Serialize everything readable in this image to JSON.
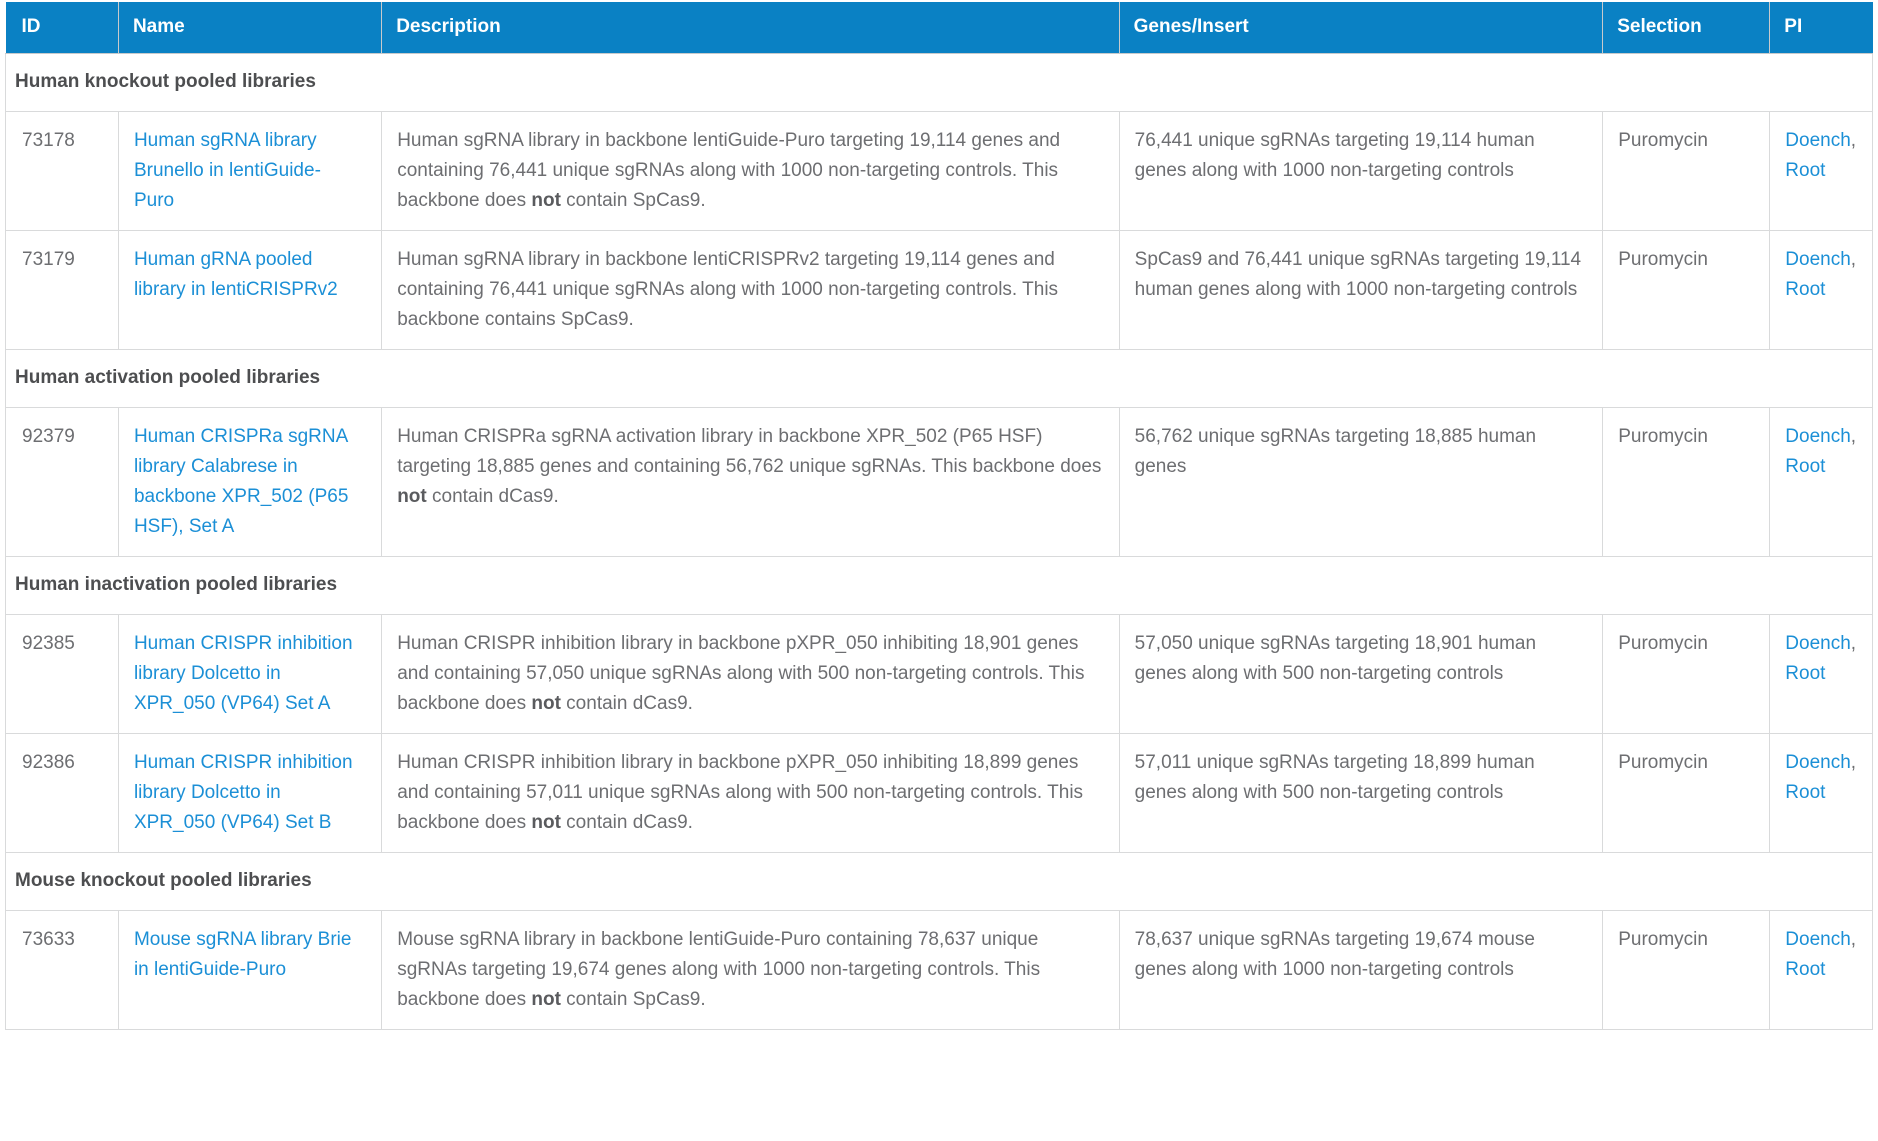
{
  "colors": {
    "header_background": "#0a81c4",
    "link": "#1b8fd6",
    "body_text": "#6d6e71",
    "section_text": "#4d4e50",
    "row_border": "#d9dadb"
  },
  "table": {
    "columns": [
      {
        "key": "id",
        "label": "ID"
      },
      {
        "key": "name",
        "label": "Name"
      },
      {
        "key": "description",
        "label": "Description"
      },
      {
        "key": "genes_insert",
        "label": "Genes/Insert"
      },
      {
        "key": "selection",
        "label": "Selection"
      },
      {
        "key": "pi",
        "label": "PI"
      }
    ],
    "pi_separator": ", ",
    "sections": [
      {
        "title": "Human knockout pooled libraries",
        "rows": [
          {
            "id": "73178",
            "name": "Human sgRNA library Brunello in lentiGuide-Puro",
            "description": [
              {
                "t": "Human sgRNA library in backbone lentiGuide-Puro targeting 19,114 genes and containing 76,441 unique sgRNAs along with 1000 non-targeting controls. This backbone does ",
                "b": false
              },
              {
                "t": "not",
                "b": true
              },
              {
                "t": " contain SpCas9.",
                "b": false
              }
            ],
            "genes_insert": "76,441 unique sgRNAs targeting 19,114 human genes along with 1000 non-targeting controls",
            "selection": "Puromycin",
            "pi": [
              "Doench",
              "Root"
            ]
          },
          {
            "id": "73179",
            "name": "Human gRNA pooled library in lentiCRISPRv2",
            "description": [
              {
                "t": "Human sgRNA library in backbone lentiCRISPRv2 targeting 19,114 genes and containing 76,441 unique sgRNAs along with 1000 non-targeting controls. This backbone contains SpCas9.",
                "b": false
              }
            ],
            "genes_insert": "SpCas9 and 76,441 unique sgRNAs targeting 19,114 human genes along with 1000 non-targeting controls",
            "selection": "Puromycin",
            "pi": [
              "Doench",
              "Root"
            ]
          }
        ]
      },
      {
        "title": "Human activation pooled libraries",
        "rows": [
          {
            "id": "92379",
            "name": "Human CRISPRa sgRNA library Calabrese in backbone XPR_502 (P65 HSF), Set A",
            "description": [
              {
                "t": "Human CRISPRa sgRNA activation library in backbone XPR_502 (P65 HSF) targeting 18,885 genes and containing 56,762 unique sgRNAs. This backbone does ",
                "b": false
              },
              {
                "t": "not",
                "b": true
              },
              {
                "t": " contain dCas9.",
                "b": false
              }
            ],
            "genes_insert": "56,762 unique sgRNAs targeting 18,885 human genes",
            "selection": "Puromycin",
            "pi": [
              "Doench",
              "Root"
            ]
          }
        ]
      },
      {
        "title": "Human inactivation pooled libraries",
        "rows": [
          {
            "id": "92385",
            "name": "Human CRISPR inhibition library Dolcetto in XPR_050 (VP64) Set A",
            "description": [
              {
                "t": "Human CRISPR inhibition library in backbone pXPR_050 inhibiting 18,901 genes and containing 57,050 unique sgRNAs along with 500 non-targeting controls. This backbone does ",
                "b": false
              },
              {
                "t": "not",
                "b": true
              },
              {
                "t": " contain dCas9.",
                "b": false
              }
            ],
            "genes_insert": "57,050 unique sgRNAs targeting 18,901 human genes along with 500 non-targeting controls",
            "selection": "Puromycin",
            "pi": [
              "Doench",
              "Root"
            ]
          },
          {
            "id": "92386",
            "name": "Human CRISPR inhibition library Dolcetto in XPR_050 (VP64) Set B",
            "description": [
              {
                "t": "Human CRISPR inhibition library in backbone pXPR_050 inhibiting 18,899 genes and containing 57,011 unique sgRNAs along with 500 non-targeting controls. This backbone does ",
                "b": false
              },
              {
                "t": "not",
                "b": true
              },
              {
                "t": " contain dCas9.",
                "b": false
              }
            ],
            "genes_insert": "57,011 unique sgRNAs targeting 18,899 human genes along with 500 non-targeting controls",
            "selection": "Puromycin",
            "pi": [
              "Doench",
              "Root"
            ]
          }
        ]
      },
      {
        "title": "Mouse knockout pooled libraries",
        "rows": [
          {
            "id": "73633",
            "name": "Mouse sgRNA library Brie in lentiGuide-Puro",
            "description": [
              {
                "t": "Mouse sgRNA library in backbone lentiGuide-Puro containing 78,637 unique sgRNAs targeting 19,674 genes along with 1000 non-targeting controls. This backbone does ",
                "b": false
              },
              {
                "t": "not",
                "b": true
              },
              {
                "t": " contain SpCas9.",
                "b": false
              }
            ],
            "genes_insert": "78,637 unique sgRNAs targeting 19,674 mouse genes along with 1000 non-targeting controls",
            "selection": "Puromycin",
            "pi": [
              "Doench",
              "Root"
            ]
          }
        ]
      }
    ]
  }
}
